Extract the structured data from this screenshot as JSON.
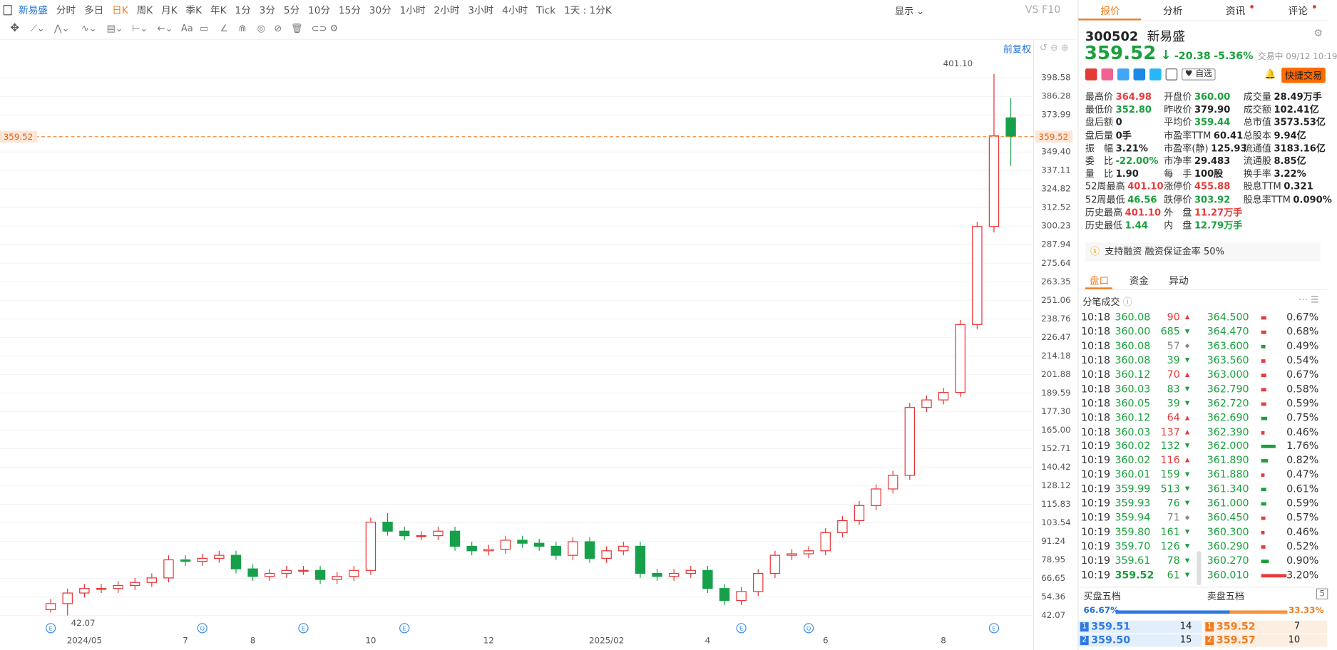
{
  "toolbar": {
    "periods": [
      {
        "text": "新易盛",
        "color": "#1e6fd9"
      },
      {
        "text": "分时"
      },
      {
        "text": "多日"
      },
      {
        "text": "日K",
        "color": "#f07c1f"
      },
      {
        "text": "周K"
      },
      {
        "text": "月K"
      },
      {
        "text": "季K"
      },
      {
        "text": "年K"
      },
      {
        "text": "1分"
      },
      {
        "text": "3分"
      },
      {
        "text": "5分"
      },
      {
        "text": "10分"
      },
      {
        "text": "15分"
      },
      {
        "text": "30分"
      },
      {
        "text": "1小时"
      },
      {
        "text": "2小时"
      },
      {
        "text": "3小时"
      },
      {
        "text": "4小时"
      },
      {
        "text": "Tick"
      },
      {
        "text": "1天 : 1分K"
      }
    ],
    "display": "显示",
    "vs": "VS",
    "f10": "F10",
    "adjust": "前复权"
  },
  "chart_data": {
    "type": "candlestick",
    "categories": [
      null,
      null,
      "2024/05",
      null,
      null,
      null,
      null,
      null,
      "7",
      null,
      null,
      null,
      "8",
      null,
      null,
      null,
      null,
      null,
      null,
      "10",
      null,
      null,
      null,
      null,
      null,
      null,
      "12",
      null,
      null,
      null,
      null,
      null,
      null,
      "2025/02",
      null,
      null,
      null,
      null,
      null,
      "4",
      null,
      null,
      null,
      null,
      null,
      null,
      "6",
      null,
      null,
      null,
      null,
      null,
      null,
      "8",
      null,
      null,
      null,
      null
    ],
    "events": [
      "E",
      null,
      null,
      null,
      null,
      null,
      null,
      null,
      null,
      "Q",
      null,
      null,
      null,
      null,
      null,
      "E",
      null,
      null,
      null,
      null,
      null,
      "E",
      null,
      null,
      null,
      null,
      null,
      null,
      null,
      null,
      null,
      null,
      null,
      null,
      null,
      null,
      null,
      null,
      null,
      null,
      null,
      "E",
      null,
      null,
      null,
      "Q",
      null,
      null,
      null,
      null,
      null,
      null,
      null,
      null,
      null,
      null,
      "E",
      null
    ],
    "open": [
      46,
      50,
      57,
      60,
      60,
      62,
      64,
      67,
      79,
      78,
      80,
      82,
      73,
      68,
      70,
      72,
      72,
      66,
      68,
      72,
      104,
      98,
      95,
      95,
      98,
      88,
      85,
      86,
      92,
      90,
      88,
      82,
      91,
      80,
      85,
      88,
      70,
      68,
      70,
      72,
      60,
      52,
      58,
      70,
      82,
      83,
      85,
      97,
      105,
      115,
      126,
      135,
      180,
      185,
      190,
      235,
      300,
      372
    ],
    "close": [
      50,
      57,
      60,
      60,
      62,
      64,
      67,
      79,
      78,
      80,
      82,
      73,
      68,
      70,
      72,
      72,
      66,
      68,
      72,
      104,
      98,
      95,
      95,
      98,
      88,
      85,
      86,
      92,
      90,
      88,
      82,
      91,
      80,
      85,
      88,
      70,
      68,
      70,
      72,
      60,
      52,
      58,
      70,
      82,
      83,
      85,
      97,
      105,
      115,
      126,
      135,
      180,
      185,
      190,
      235,
      300,
      360,
      359.52
    ],
    "high": [
      53,
      60,
      63,
      63,
      65,
      67,
      70,
      82,
      82,
      83,
      85,
      85,
      76,
      73,
      75,
      75,
      75,
      71,
      75,
      107,
      110,
      101,
      98,
      101,
      101,
      91,
      89,
      95,
      95,
      93,
      91,
      94,
      94,
      88,
      91,
      91,
      73,
      73,
      75,
      75,
      63,
      61,
      73,
      85,
      86,
      88,
      100,
      108,
      118,
      129,
      138,
      183,
      188,
      193,
      238,
      303,
      401.1,
      385
    ],
    "low": [
      44,
      42.07,
      54,
      57,
      57,
      59,
      61,
      64,
      75,
      75,
      77,
      70,
      65,
      65,
      67,
      69,
      63,
      63,
      65,
      69,
      95,
      92,
      92,
      92,
      85,
      82,
      82,
      83,
      87,
      85,
      79,
      79,
      77,
      77,
      82,
      67,
      65,
      65,
      67,
      57,
      49,
      49,
      55,
      67,
      79,
      80,
      82,
      94,
      102,
      112,
      123,
      132,
      177,
      182,
      187,
      232,
      296,
      340
    ],
    "up_color": "#e93030",
    "down_color": "#17a04a",
    "ylim": [
      30.9,
      412.0
    ],
    "yticks": [
      42.07,
      54.36,
      66.65,
      78.95,
      91.24,
      103.54,
      115.83,
      128.12,
      140.42,
      152.71,
      {
        "value": 165,
        "label": "165.00"
      },
      {
        "value": 177.3,
        "label": "177.30"
      },
      189.59,
      201.88,
      214.18,
      226.47,
      238.76,
      251.06,
      263.35,
      275.64,
      287.94,
      300.23,
      312.52,
      324.82,
      337.11,
      {
        "value": 349.4,
        "label": "349.40"
      },
      373.99,
      386.28,
      398.58
    ],
    "grid": true,
    "last_price": 359.52,
    "max_label": {
      "value": 401.1,
      "label": "401.10"
    },
    "min_label": {
      "value": 42.07,
      "label": "42.07"
    }
  },
  "panel": {
    "tabs": [
      "报价",
      "分析",
      "资讯",
      "评论"
    ],
    "code": "300502",
    "name": "新易盛",
    "price": "359.52",
    "change": "-20.38",
    "change_pct": "-5.36%",
    "status": "交易中 09/12 10:19",
    "watch": "自选",
    "quick_trade": "快捷交易",
    "stats": [
      [
        {
          "label": "最高价",
          "value": "364.98",
          "color": "#e63b3b"
        },
        {
          "label": "开盘价",
          "value": "360.00",
          "color": "#1a9f3c"
        },
        {
          "label": "成交量",
          "value": "28.49万手"
        }
      ],
      [
        {
          "label": "最低价",
          "value": "352.80",
          "color": "#1a9f3c"
        },
        {
          "label": "昨收价",
          "value": "379.90"
        },
        {
          "label": "成交额",
          "value": "102.41亿"
        }
      ],
      [
        {
          "label": "盘后额",
          "value": "0"
        },
        {
          "label": "平均价",
          "value": "359.44",
          "color": "#1a9f3c"
        },
        {
          "label": "总市值",
          "value": "3573.53亿"
        }
      ],
      [
        {
          "label": "盘后量",
          "value": "0手"
        },
        {
          "label": "市盈率TTM",
          "value": "60.41"
        },
        {
          "label": "总股本",
          "value": "9.94亿"
        }
      ],
      [
        {
          "label": "振　幅",
          "value": "3.21%"
        },
        {
          "label": "市盈率(静)",
          "value": "125.93"
        },
        {
          "label": "流通值",
          "value": "3183.16亿"
        }
      ],
      [
        {
          "label": "委　比",
          "value": "-22.00%",
          "color": "#1a9f3c"
        },
        {
          "label": "市净率",
          "value": "29.483"
        },
        {
          "label": "流通股",
          "value": "8.85亿"
        }
      ],
      [
        {
          "label": "量　比",
          "value": "1.90"
        },
        {
          "label": "每　手",
          "value": "100股"
        },
        {
          "label": "换手率",
          "value": "3.22%"
        }
      ],
      [
        {
          "label": "52周最高",
          "value": "401.10",
          "color": "#e63b3b"
        },
        {
          "label": "涨停价",
          "value": "455.88",
          "color": "#e63b3b"
        },
        {
          "label": "股息TTM",
          "value": "0.321"
        }
      ],
      [
        {
          "label": "52周最低",
          "value": "46.56",
          "color": "#1a9f3c"
        },
        {
          "label": "跌停价",
          "value": "303.92",
          "color": "#1a9f3c"
        },
        {
          "label": "股息率TTM",
          "value": "0.090%"
        }
      ],
      [
        {
          "label": "历史最高",
          "value": "401.10",
          "color": "#e63b3b"
        },
        {
          "label": "外　盘",
          "value": "11.27万手",
          "color": "#e63b3b"
        }
      ],
      [
        {
          "label": "历史最低",
          "value": "1.44",
          "color": "#1a9f3c"
        },
        {
          "label": "内　盘",
          "value": "12.79万手",
          "color": "#1a9f3c"
        }
      ]
    ],
    "notice": "支持融资 融资保证金率 50%",
    "subtabs": [
      "盘口",
      "资金",
      "异动"
    ],
    "trades_title": "分笔成交",
    "trades": [
      {
        "time": "10:18",
        "price": "360.08",
        "vol": "90",
        "dir": "up"
      },
      {
        "time": "10:18",
        "price": "360.00",
        "vol": "685",
        "dir": "down"
      },
      {
        "time": "10:18",
        "price": "360.08",
        "vol": "57",
        "dir": "flat"
      },
      {
        "time": "10:18",
        "price": "360.08",
        "vol": "39",
        "dir": "down"
      },
      {
        "time": "10:18",
        "price": "360.12",
        "vol": "70",
        "dir": "up"
      },
      {
        "time": "10:18",
        "price": "360.03",
        "vol": "83",
        "dir": "down"
      },
      {
        "time": "10:18",
        "price": "360.05",
        "vol": "39",
        "dir": "down"
      },
      {
        "time": "10:18",
        "price": "360.12",
        "vol": "64",
        "dir": "up"
      },
      {
        "time": "10:18",
        "price": "360.03",
        "vol": "137",
        "dir": "up"
      },
      {
        "time": "10:19",
        "price": "360.02",
        "vol": "132",
        "dir": "down"
      },
      {
        "time": "10:19",
        "price": "360.02",
        "vol": "116",
        "dir": "up"
      },
      {
        "time": "10:19",
        "price": "360.01",
        "vol": "159",
        "dir": "down"
      },
      {
        "time": "10:19",
        "price": "359.99",
        "vol": "513",
        "dir": "down"
      },
      {
        "time": "10:19",
        "price": "359.93",
        "vol": "76",
        "dir": "down"
      },
      {
        "time": "10:19",
        "price": "359.94",
        "vol": "71",
        "dir": "flat"
      },
      {
        "time": "10:19",
        "price": "359.80",
        "vol": "161",
        "dir": "down"
      },
      {
        "time": "10:19",
        "price": "359.70",
        "vol": "126",
        "dir": "down"
      },
      {
        "time": "10:19",
        "price": "359.61",
        "vol": "78",
        "dir": "down"
      },
      {
        "time": "10:19",
        "price": "359.52",
        "vol": "61",
        "dir": "down"
      }
    ],
    "distribution": [
      {
        "price": "364.500",
        "pct": 0.67,
        "label": "0.67%",
        "color": "#e63b3b"
      },
      {
        "price": "364.470",
        "pct": 0.68,
        "label": "0.68%",
        "color": "#e63b3b"
      },
      {
        "price": "363.600",
        "pct": 0.49,
        "label": "0.49%",
        "color": "#1a9f3c"
      },
      {
        "price": "363.560",
        "pct": 0.54,
        "label": "0.54%",
        "color": "#e63b3b"
      },
      {
        "price": "363.000",
        "pct": 0.67,
        "label": "0.67%",
        "color": "#e63b3b"
      },
      {
        "price": "362.790",
        "pct": 0.58,
        "label": "0.58%",
        "color": "#e63b3b"
      },
      {
        "price": "362.720",
        "pct": 0.59,
        "label": "0.59%",
        "color": "#e63b3b"
      },
      {
        "price": "362.690",
        "pct": 0.75,
        "label": "0.75%",
        "color": "#1a9f3c"
      },
      {
        "price": "362.390",
        "pct": 0.46,
        "label": "0.46%",
        "color": "#e63b3b"
      },
      {
        "price": "362.000",
        "pct": 1.76,
        "label": "1.76%",
        "color": "#1a9f3c"
      },
      {
        "price": "361.890",
        "pct": 0.82,
        "label": "0.82%",
        "color": "#1a9f3c"
      },
      {
        "price": "361.880",
        "pct": 0.47,
        "label": "0.47%",
        "color": "#e63b3b"
      },
      {
        "price": "361.340",
        "pct": 0.61,
        "label": "0.61%",
        "color": "#1a9f3c"
      },
      {
        "price": "361.000",
        "pct": 0.59,
        "label": "0.59%",
        "color": "#1a9f3c"
      },
      {
        "price": "360.450",
        "pct": 0.57,
        "label": "0.57%",
        "color": "#e63b3b"
      },
      {
        "price": "360.300",
        "pct": 0.46,
        "label": "0.46%",
        "color": "#e63b3b"
      },
      {
        "price": "360.290",
        "pct": 0.52,
        "label": "0.52%",
        "color": "#e63b3b"
      },
      {
        "price": "360.270",
        "pct": 0.9,
        "label": "0.90%",
        "color": "#1a9f3c"
      },
      {
        "price": "360.010",
        "pct": 3.2,
        "label": "3.20%",
        "color": "#e63b3b"
      }
    ],
    "buy_title": "买盘五档",
    "sell_title": "卖盘五档",
    "levels_button": "5",
    "buy_ratio": {
      "value": 66.67,
      "label": "66.67%"
    },
    "sell_ratio": {
      "value": 33.33,
      "label": "33.33%"
    },
    "buy": [
      {
        "level": "1",
        "price": "359.51",
        "vol": "14"
      },
      {
        "level": "2",
        "price": "359.50",
        "vol": "15"
      }
    ],
    "sell": [
      {
        "level": "1",
        "price": "359.52",
        "vol": "7"
      },
      {
        "level": "2",
        "price": "359.57",
        "vol": "10"
      }
    ]
  }
}
